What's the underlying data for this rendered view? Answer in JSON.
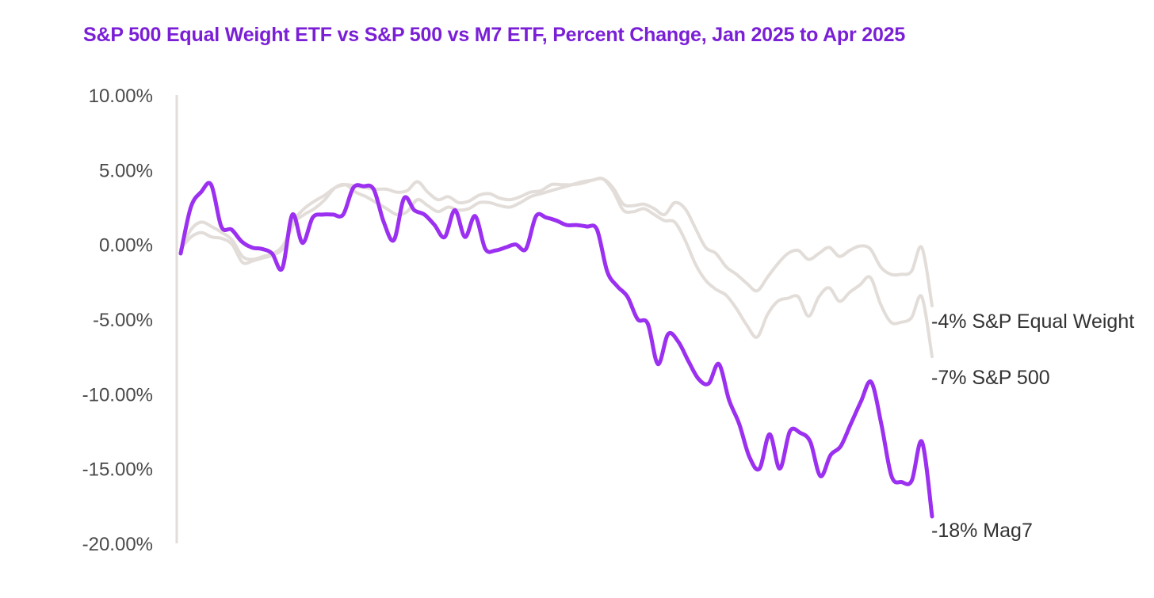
{
  "chart_data": {
    "type": "line",
    "title": "S&P 500 Equal Weight ETF vs S&P 500 vs M7 ETF, Percent Change, Jan 2025 to Apr 2025",
    "xlabel": "",
    "ylabel": "",
    "ylim": [
      -20,
      10
    ],
    "yticks": [
      10,
      5,
      0,
      -5,
      -10,
      -15,
      -20
    ],
    "ytick_labels": [
      "10.00%",
      "5.00%",
      "0.00%",
      "-5.00%",
      "-10.00%",
      "-15.00%",
      "-20.00%"
    ],
    "grid": false,
    "colors": {
      "highlight": "#9b30f0",
      "muted": "#e2ddd9",
      "axis": "#e2ddd9",
      "title": "#7a1fd6"
    },
    "series": [
      {
        "name": "S&P Equal Weight",
        "end_label": "-4%  S&P Equal Weight",
        "color": "#e2ddd9",
        "values": [
          -0.3,
          1.0,
          1.5,
          1.2,
          0.8,
          0.3,
          -0.8,
          -1.0,
          -0.8,
          -0.6,
          0.0,
          1.6,
          2.4,
          2.9,
          3.3,
          3.8,
          4.0,
          3.9,
          3.8,
          3.7,
          3.7,
          3.5,
          3.6,
          4.2,
          3.5,
          3.0,
          3.2,
          2.8,
          2.9,
          3.3,
          3.4,
          3.1,
          3.0,
          3.2,
          3.5,
          3.6,
          4.0,
          4.0,
          4.0,
          4.1,
          4.3,
          4.4,
          3.8,
          2.7,
          2.6,
          2.7,
          2.4,
          2.0,
          2.8,
          2.4,
          1.1,
          -0.2,
          -0.6,
          -1.5,
          -2.0,
          -2.6,
          -3.1,
          -2.2,
          -1.3,
          -0.6,
          -0.4,
          -1.0,
          -0.6,
          -0.2,
          -0.8,
          -0.4,
          -0.1,
          -0.3,
          -1.5,
          -2.0,
          -2.0,
          -1.8,
          -0.2,
          -4.1
        ]
      },
      {
        "name": "S&P 500",
        "end_label": "-7%  S&P 500",
        "color": "#e2ddd9",
        "values": [
          -0.3,
          0.5,
          0.8,
          0.5,
          0.4,
          0.0,
          -1.2,
          -1.1,
          -0.9,
          -0.7,
          -0.2,
          1.4,
          2.0,
          2.4,
          3.0,
          3.8,
          4.0,
          3.5,
          3.2,
          2.8,
          2.4,
          2.0,
          2.2,
          3.0,
          2.6,
          2.2,
          2.5,
          2.3,
          2.4,
          2.8,
          2.8,
          2.6,
          2.5,
          2.8,
          3.2,
          3.4,
          3.6,
          3.8,
          4.0,
          4.2,
          4.3,
          4.4,
          3.6,
          2.3,
          2.2,
          2.4,
          2.0,
          1.6,
          1.5,
          0.3,
          -1.3,
          -2.4,
          -3.0,
          -3.4,
          -4.3,
          -5.4,
          -6.2,
          -4.7,
          -3.8,
          -3.6,
          -3.5,
          -4.8,
          -3.5,
          -2.9,
          -3.8,
          -3.2,
          -2.7,
          -2.2,
          -4.0,
          -5.2,
          -5.2,
          -4.9,
          -3.5,
          -7.5
        ]
      },
      {
        "name": "Mag7",
        "end_label": "-18%  Mag7",
        "color": "#9b30f0",
        "values": [
          -0.6,
          2.5,
          3.5,
          4.0,
          1.2,
          1.0,
          0.2,
          -0.2,
          -0.3,
          -0.6,
          -1.6,
          2.0,
          0.1,
          1.8,
          2.0,
          2.0,
          2.0,
          3.8,
          3.9,
          3.7,
          1.5,
          0.3,
          3.1,
          2.3,
          2.0,
          1.3,
          0.5,
          2.3,
          0.5,
          1.9,
          -0.3,
          -0.4,
          -0.2,
          0.0,
          -0.3,
          1.9,
          1.8,
          1.6,
          1.3,
          1.3,
          1.2,
          1.0,
          -1.8,
          -2.8,
          -3.5,
          -5.0,
          -5.3,
          -8.0,
          -6.0,
          -6.5,
          -7.8,
          -9.0,
          -9.3,
          -8.0,
          -10.4,
          -12.0,
          -14.2,
          -15.0,
          -12.7,
          -15.0,
          -12.5,
          -12.6,
          -13.2,
          -15.5,
          -14.1,
          -13.5,
          -12.0,
          -10.5,
          -9.2,
          -12.0,
          -15.5,
          -15.9,
          -15.8,
          -13.2,
          -18.2
        ]
      }
    ]
  }
}
